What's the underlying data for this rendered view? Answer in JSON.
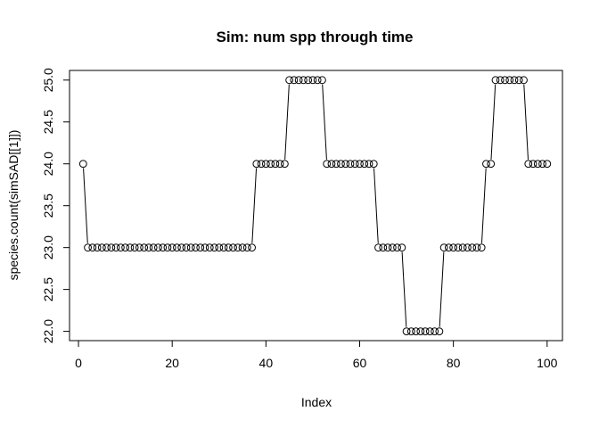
{
  "chart_data": {
    "type": "line",
    "style": "points-and-lines",
    "title": "Sim: num spp through time",
    "xlabel": "Index",
    "ylabel": "species.count(simSAD[[1]])",
    "xlim": [
      1,
      100
    ],
    "ylim": [
      22,
      25
    ],
    "xticks": [
      "0",
      "20",
      "40",
      "60",
      "80",
      "100"
    ],
    "yticks": [
      "22.0",
      "22.5",
      "23.0",
      "23.5",
      "24.0",
      "24.5",
      "25.0"
    ],
    "grid": false,
    "legend": "none",
    "series": [
      {
        "x": [
          1,
          2,
          3,
          4,
          5,
          6,
          7,
          8,
          9,
          10,
          11,
          12,
          13,
          14,
          15,
          16,
          17,
          18,
          19,
          20,
          21,
          22,
          23,
          24,
          25,
          26,
          27,
          28,
          29,
          30,
          31,
          32,
          33,
          34,
          35,
          36,
          37,
          38,
          39,
          40,
          41,
          42,
          43,
          44,
          45,
          46,
          47,
          48,
          49,
          50,
          51,
          52,
          53,
          54,
          55,
          56,
          57,
          58,
          59,
          60,
          61,
          62,
          63,
          64,
          65,
          66,
          67,
          68,
          69,
          70,
          71,
          72,
          73,
          74,
          75,
          76,
          77,
          78,
          79,
          80,
          81,
          82,
          83,
          84,
          85,
          86,
          87,
          88,
          89,
          90,
          91,
          92,
          93,
          94,
          95,
          96,
          97,
          98,
          99,
          100
        ],
        "values": [
          24,
          23,
          23,
          23,
          23,
          23,
          23,
          23,
          23,
          23,
          23,
          23,
          23,
          23,
          23,
          23,
          23,
          23,
          23,
          23,
          23,
          23,
          23,
          23,
          23,
          23,
          23,
          23,
          23,
          23,
          23,
          23,
          23,
          23,
          23,
          23,
          23,
          24,
          24,
          24,
          24,
          24,
          24,
          24,
          25,
          25,
          25,
          25,
          25,
          25,
          25,
          25,
          24,
          24,
          24,
          24,
          24,
          24,
          24,
          24,
          24,
          24,
          24,
          23,
          23,
          23,
          23,
          23,
          23,
          22,
          22,
          22,
          22,
          22,
          22,
          22,
          22,
          23,
          23,
          23,
          23,
          23,
          23,
          23,
          23,
          23,
          24,
          24,
          25,
          25,
          25,
          25,
          25,
          25,
          25,
          24,
          24,
          24,
          24,
          24
        ]
      }
    ]
  }
}
